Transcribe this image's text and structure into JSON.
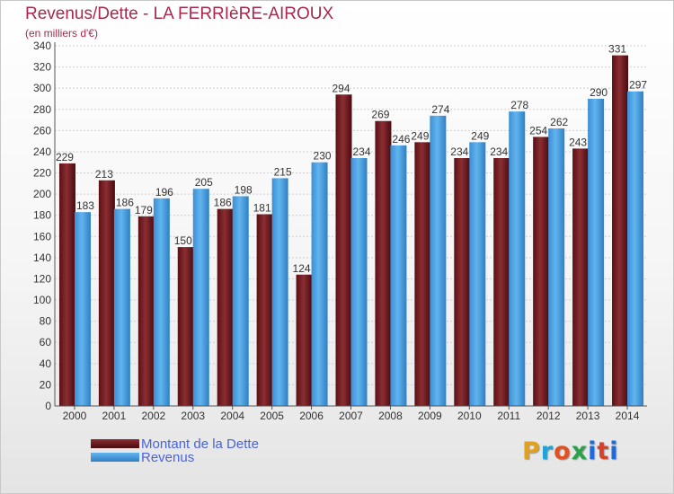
{
  "header": {
    "title": "Revenus/Dette - LA FERRIèRE-AIROUX",
    "subtitle": "(en milliers d'€)"
  },
  "legend": {
    "items": [
      {
        "label": "Montant de la Dette",
        "color": "#6f1e22"
      },
      {
        "label": "Revenus",
        "color": "#4ea4e6"
      }
    ]
  },
  "logo": {
    "letters": [
      "P",
      "r",
      "o",
      "x",
      "i",
      "t",
      "i"
    ],
    "colors": [
      "#e0a020",
      "#1fa4d8",
      "#e05020",
      "#2aa24a",
      "#1f6ad8",
      "#d8402a",
      "#1f6ad8"
    ]
  },
  "chart_data": {
    "type": "bar",
    "title": "Revenus/Dette - LA FERRIèRE-AIROUX",
    "subtitle": "(en milliers d'€)",
    "xlabel": "",
    "ylabel": "",
    "ylim": [
      0,
      340
    ],
    "ytick_step": 20,
    "grid": true,
    "legend_position": "bottom-left",
    "categories": [
      "2000",
      "2001",
      "2002",
      "2003",
      "2004",
      "2005",
      "2006",
      "2007",
      "2008",
      "2009",
      "2010",
      "2011",
      "2012",
      "2013",
      "2014"
    ],
    "series": [
      {
        "name": "Montant de la Dette",
        "color": "#6f1e22",
        "values": [
          229,
          213,
          179,
          150,
          186,
          181,
          124,
          294,
          269,
          249,
          234,
          234,
          254,
          243,
          331
        ]
      },
      {
        "name": "Revenus",
        "color": "#4ea4e6",
        "values": [
          183,
          186,
          196,
          205,
          198,
          215,
          230,
          234,
          246,
          274,
          249,
          278,
          262,
          290,
          297
        ]
      }
    ]
  }
}
